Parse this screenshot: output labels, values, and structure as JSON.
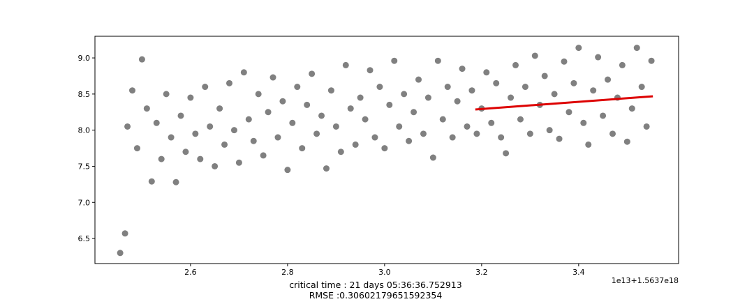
{
  "chart_data": {
    "type": "scatter",
    "offset_text": "1e13+1.5637e18",
    "xlabel_lines": [
      "critical time : 21 days 05:36:36.752913",
      "RMSE :0.30602179651592354"
    ],
    "xlim": [
      2.403,
      3.606
    ],
    "ylim": [
      6.153,
      9.3
    ],
    "xticks": [
      2.6,
      2.8,
      {
        "value": 3,
        "label": "3.0"
      },
      3.2,
      3.4
    ],
    "yticks": [
      6.5,
      {
        "value": 7,
        "label": "7.0"
      },
      7.5,
      {
        "value": 8,
        "label": "8.0"
      },
      8.5,
      {
        "value": 9,
        "label": "9.0"
      }
    ],
    "grid": false,
    "series": [
      {
        "color": "#808080",
        "x": [
          2.455,
          2.465,
          2.47,
          2.48,
          2.49,
          2.5,
          2.51,
          2.52,
          2.53,
          2.54,
          2.55,
          2.56,
          2.57,
          2.58,
          2.59,
          2.6,
          2.61,
          2.62,
          2.63,
          2.64,
          2.65,
          2.66,
          2.67,
          2.68,
          2.69,
          2.7,
          2.71,
          2.72,
          2.73,
          2.74,
          2.75,
          2.76,
          2.77,
          2.78,
          2.79,
          2.8,
          2.81,
          2.82,
          2.83,
          2.84,
          2.85,
          2.86,
          2.87,
          2.88,
          2.89,
          2.9,
          2.91,
          2.92,
          2.93,
          2.94,
          2.95,
          2.96,
          2.97,
          2.98,
          2.99,
          3.0,
          3.01,
          3.02,
          3.03,
          3.04,
          3.05,
          3.06,
          3.07,
          3.08,
          3.09,
          3.1,
          3.11,
          3.12,
          3.13,
          3.14,
          3.15,
          3.16,
          3.17,
          3.18,
          3.19,
          3.2,
          3.21,
          3.22,
          3.23,
          3.24,
          3.25,
          3.26,
          3.27,
          3.28,
          3.29,
          3.3,
          3.31,
          3.32,
          3.33,
          3.34,
          3.35,
          3.36,
          3.37,
          3.38,
          3.39,
          3.4,
          3.41,
          3.42,
          3.43,
          3.44,
          3.45,
          3.46,
          3.47,
          3.48,
          3.49,
          3.5,
          3.51,
          3.52,
          3.53,
          3.54,
          3.55
        ],
        "values": [
          6.3,
          6.57,
          8.05,
          8.55,
          7.75,
          8.98,
          8.3,
          7.29,
          8.1,
          7.6,
          8.5,
          7.9,
          7.28,
          8.2,
          7.7,
          8.45,
          7.95,
          7.6,
          8.6,
          8.05,
          7.5,
          8.3,
          7.8,
          8.65,
          8.0,
          7.55,
          8.8,
          8.15,
          7.85,
          8.5,
          7.65,
          8.25,
          8.73,
          7.9,
          8.4,
          7.45,
          8.1,
          8.6,
          7.75,
          8.35,
          8.78,
          7.95,
          8.2,
          7.47,
          8.55,
          8.05,
          7.7,
          8.9,
          8.3,
          7.8,
          8.45,
          8.15,
          8.83,
          7.9,
          8.6,
          7.75,
          8.35,
          8.96,
          8.05,
          8.5,
          7.85,
          8.25,
          8.7,
          7.95,
          8.45,
          7.62,
          8.96,
          8.15,
          8.6,
          7.9,
          8.4,
          8.85,
          8.05,
          8.55,
          7.95,
          8.3,
          8.8,
          8.1,
          8.65,
          7.9,
          7.68,
          8.45,
          8.9,
          8.15,
          8.6,
          7.95,
          9.03,
          8.35,
          8.75,
          8.0,
          8.5,
          7.88,
          8.95,
          8.25,
          8.65,
          9.14,
          8.1,
          7.8,
          8.55,
          9.01,
          8.2,
          8.7,
          7.95,
          8.45,
          8.9,
          7.84,
          8.3,
          9.14,
          8.6,
          8.05,
          8.96
        ]
      },
      {
        "type": "line",
        "color": "#dd0000",
        "x": [
          3.187,
          3.553
        ],
        "values": [
          8.286,
          8.469
        ]
      }
    ]
  }
}
